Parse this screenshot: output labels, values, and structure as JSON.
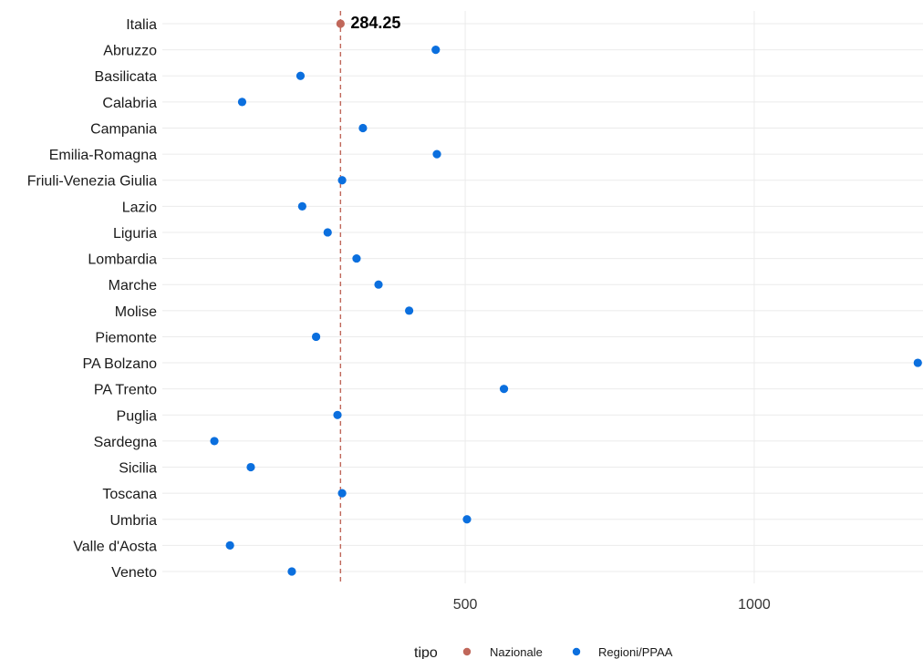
{
  "chart_data": {
    "type": "scatter",
    "orientation": "horizontal-dot",
    "categories": [
      "Italia",
      "Abruzzo",
      "Basilicata",
      "Calabria",
      "Campania",
      "Emilia-Romagna",
      "Friuli-Venezia Giulia",
      "Lazio",
      "Liguria",
      "Lombardia",
      "Marche",
      "Molise",
      "Piemonte",
      "PA Bolzano",
      "PA Trento",
      "Puglia",
      "Sardegna",
      "Sicilia",
      "Toscana",
      "Umbria",
      "Valle d'Aosta",
      "Veneto"
    ],
    "values": [
      284.25,
      449,
      215,
      114,
      323,
      451,
      287,
      218,
      262,
      312,
      350,
      403,
      242,
      1283,
      567,
      279,
      66,
      129,
      287,
      503,
      93,
      200
    ],
    "groups": [
      "Nazionale",
      "Regioni/PPAA",
      "Regioni/PPAA",
      "Regioni/PPAA",
      "Regioni/PPAA",
      "Regioni/PPAA",
      "Regioni/PPAA",
      "Regioni/PPAA",
      "Regioni/PPAA",
      "Regioni/PPAA",
      "Regioni/PPAA",
      "Regioni/PPAA",
      "Regioni/PPAA",
      "Regioni/PPAA",
      "Regioni/PPAA",
      "Regioni/PPAA",
      "Regioni/PPAA",
      "Regioni/PPAA",
      "Regioni/PPAA",
      "Regioni/PPAA",
      "Regioni/PPAA",
      "Regioni/PPAA"
    ],
    "x_ticks": [
      500,
      1000
    ],
    "x_tick_labels": [
      "500",
      "1000"
    ],
    "xlim": [
      -24,
      1292
    ],
    "reference_line": {
      "value": 284.25,
      "style": "dashed"
    },
    "annotation": "284.25",
    "grid": true,
    "legend": {
      "title": "tipo",
      "position": "bottom",
      "entries": [
        {
          "label": "Nazionale",
          "color": "#c0675a"
        },
        {
          "label": "Regioni/PPAA",
          "color": "#0b6fde"
        }
      ]
    },
    "title": "",
    "xlabel": "",
    "ylabel": ""
  },
  "colors": {
    "nazionale": "#c0675a",
    "regioni": "#0b6fde",
    "grid": "#ebebeb"
  }
}
